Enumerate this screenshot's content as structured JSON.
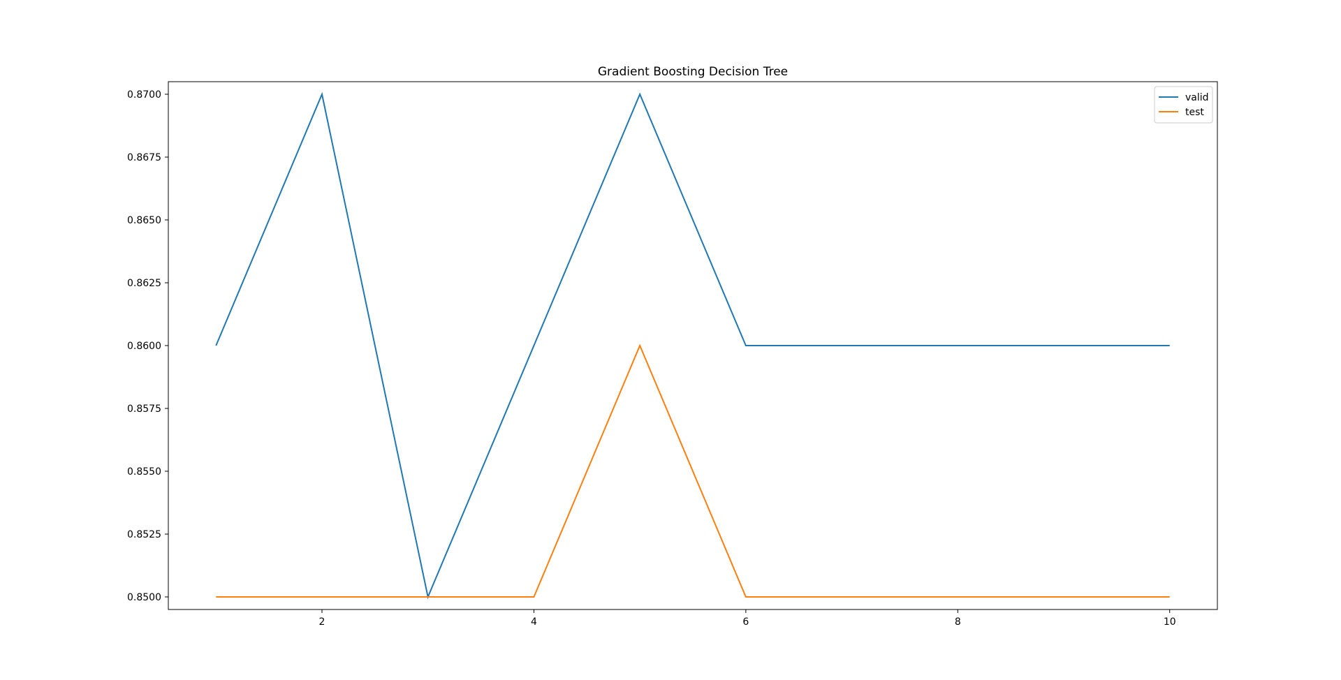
{
  "chart_data": {
    "type": "line",
    "title": "Gradient Boosting Decision Tree",
    "xlabel": "",
    "ylabel": "",
    "x": [
      1,
      2,
      3,
      4,
      5,
      6,
      7,
      8,
      9,
      10
    ],
    "xlim": [
      0.55,
      10.45
    ],
    "ylim": [
      0.8495,
      0.8705
    ],
    "x_ticks": [
      2,
      4,
      6,
      8,
      10
    ],
    "x_tick_labels": [
      "2",
      "4",
      "6",
      "8",
      "10"
    ],
    "y_ticks": [
      0.85,
      0.8525,
      0.855,
      0.8575,
      0.86,
      0.8625,
      0.865,
      0.8675,
      0.87
    ],
    "y_tick_labels": [
      "0.8500",
      "0.8525",
      "0.8550",
      "0.8575",
      "0.8600",
      "0.8625",
      "0.8650",
      "0.8675",
      "0.8700"
    ],
    "grid": false,
    "legend_position": "top-right",
    "series": [
      {
        "name": "valid",
        "color": "#1f77b4",
        "values": [
          0.86,
          0.87,
          0.85,
          0.86,
          0.87,
          0.86,
          0.86,
          0.86,
          0.86,
          0.86
        ]
      },
      {
        "name": "test",
        "color": "#ff7f0e",
        "values": [
          0.85,
          0.85,
          0.85,
          0.85,
          0.86,
          0.85,
          0.85,
          0.85,
          0.85,
          0.85
        ]
      }
    ]
  }
}
